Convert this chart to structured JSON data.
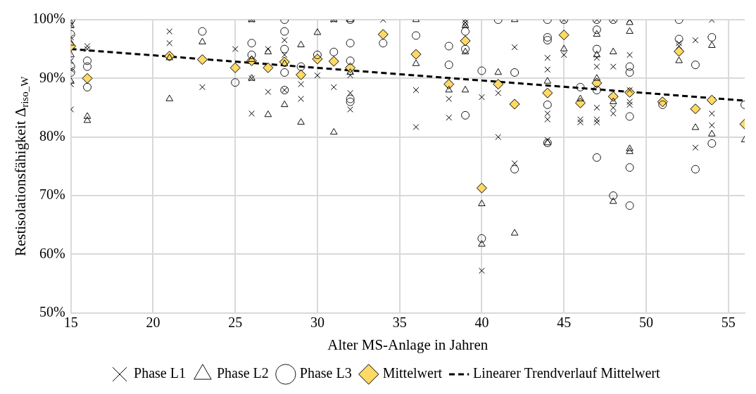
{
  "chart_data": {
    "type": "scatter",
    "xlabel": "Alter MS-Anlage in Jahren",
    "ylabel": "Restisolationsfähigkeit Δ$_{riso_W}$",
    "xlim": [
      15,
      56
    ],
    "xticks": [
      15,
      20,
      25,
      30,
      35,
      40,
      45,
      50,
      55
    ],
    "ylim": [
      50,
      100
    ],
    "yticks": [
      {
        "value": 50,
        "label": "50%"
      },
      {
        "value": 60,
        "label": "60%"
      },
      {
        "value": 70,
        "label": "70%"
      },
      {
        "value": 80,
        "label": "80%"
      },
      {
        "value": 90,
        "label": "90%"
      },
      {
        "value": 100,
        "label": "100%"
      }
    ],
    "grid": true,
    "legend": "bottom",
    "series": [
      {
        "name": "Phase L1",
        "color": "#000000",
        "marker": "cross",
        "x": [
          15,
          15,
          15,
          15,
          15,
          15,
          15,
          16,
          16,
          21,
          21,
          23,
          25,
          26,
          26,
          26,
          27,
          27,
          28,
          28,
          28,
          29,
          29,
          30,
          31,
          31,
          32,
          32,
          32,
          34,
          36,
          36,
          38,
          38,
          39,
          39,
          39,
          40,
          40,
          41,
          41,
          42,
          42,
          44,
          44,
          44,
          44,
          44,
          45,
          45,
          46,
          46,
          47,
          47,
          47,
          47,
          47,
          47,
          48,
          48,
          48,
          48,
          49,
          49,
          49,
          49,
          49,
          52,
          52,
          53,
          53,
          54,
          54,
          54
        ],
        "values": [
          100,
          99,
          97,
          93,
          91.5,
          89,
          84.7,
          95.5,
          95,
          98,
          96,
          88.5,
          95,
          100,
          90,
          84,
          95,
          87.7,
          96.5,
          94,
          88,
          89,
          86.5,
          90.5,
          100,
          88.5,
          90.5,
          87.5,
          84.7,
          100,
          88,
          81.7,
          86.5,
          83.3,
          100,
          99.5,
          99,
          86.8,
          57.2,
          87.5,
          80,
          95.3,
          75.5,
          93.5,
          91.5,
          84,
          83,
          79.5,
          100,
          94,
          83,
          82.5,
          100,
          93.5,
          92,
          85,
          83,
          82.5,
          100,
          92,
          85,
          84,
          100,
          94,
          88,
          86,
          85.5,
          96,
          95.5,
          96.5,
          78.2,
          100,
          84,
          82
        ]
      },
      {
        "name": "Phase L2",
        "color": "#0d0d0d",
        "marker": "triangle",
        "x": [
          15,
          15,
          15,
          15,
          16,
          16,
          21,
          21,
          23,
          26,
          26,
          26,
          27,
          27,
          28,
          28,
          29,
          29,
          30,
          31,
          31,
          32,
          32,
          36,
          36,
          38,
          39,
          39,
          39,
          40,
          40,
          41,
          42,
          42,
          44,
          44,
          45,
          46,
          47,
          47,
          47,
          48,
          48,
          48,
          49,
          49,
          49,
          49,
          52,
          53,
          54,
          54,
          56
        ],
        "values": [
          99,
          96,
          94,
          89.5,
          83.5,
          82.8,
          93.5,
          86.5,
          96.2,
          100,
          93.2,
          90,
          94.5,
          83.8,
          92.5,
          85.5,
          95.7,
          82.5,
          97.8,
          100,
          80.8,
          100,
          91,
          100,
          92.5,
          88,
          99,
          94.5,
          88,
          68.6,
          61.7,
          91,
          100,
          63.6,
          89.5,
          79,
          95,
          86.5,
          97.5,
          94,
          90,
          94.5,
          86,
          69,
          99.5,
          98,
          78,
          77.5,
          93,
          81.6,
          95.6,
          80.5,
          79.5
        ]
      },
      {
        "name": "Phase L3",
        "color": "#1a1a1a",
        "marker": "circle",
        "x": [
          15,
          15,
          15,
          15,
          16,
          16,
          16,
          23,
          25,
          26,
          26,
          28,
          28,
          28,
          28,
          28,
          29,
          30,
          31,
          32,
          32,
          32,
          32,
          32,
          34,
          36,
          38,
          38,
          39,
          39,
          39,
          40,
          40,
          41,
          42,
          42,
          44,
          44,
          44,
          44,
          44,
          45,
          46,
          47,
          47,
          47,
          47,
          47,
          48,
          48,
          49,
          49,
          49,
          49,
          49,
          51,
          52,
          52,
          53,
          53,
          54,
          54,
          56
        ],
        "values": [
          100,
          97.5,
          92,
          91,
          93,
          92,
          88.5,
          98,
          89.3,
          96,
          94,
          100,
          98,
          95,
          91,
          88,
          92,
          94,
          94.5,
          100,
          96,
          93,
          86.5,
          86,
          96,
          97.3,
          95.5,
          92.3,
          98,
          95,
          83.7,
          91.3,
          62.7,
          100,
          91,
          74.5,
          100,
          97,
          96.5,
          85.5,
          79,
          100,
          88.5,
          100,
          98.3,
          95,
          88,
          76.5,
          100,
          70,
          92,
          91,
          83.5,
          74.8,
          68.3,
          85.5,
          100,
          96.7,
          92.3,
          74.5,
          97,
          78.9,
          85.5
        ]
      },
      {
        "name": "Mittelwert",
        "color": "#ffd966",
        "marker": "diamond",
        "x": [
          15,
          16,
          21,
          23,
          25,
          26,
          27,
          28,
          29,
          30,
          31,
          32,
          34,
          36,
          38,
          39,
          40,
          41,
          42,
          44,
          45,
          46,
          47,
          48,
          49,
          51,
          52,
          53,
          54,
          56
        ],
        "values": [
          95.5,
          90,
          93.8,
          93.2,
          91.8,
          93,
          91.8,
          92.8,
          90.6,
          93.3,
          92.9,
          91.8,
          97.5,
          94.1,
          89,
          96.4,
          71.3,
          89,
          85.6,
          87.5,
          97.4,
          85.8,
          89.2,
          86.9,
          87.6,
          86,
          94.6,
          84.8,
          86.3,
          82.2
        ]
      },
      {
        "name": "Linearer Trendverlauf Mittelwert",
        "type": "line",
        "color": "#000000",
        "marker": "none",
        "line_style": "dashed",
        "x": [
          15,
          56
        ],
        "values": [
          95,
          86.2
        ]
      }
    ]
  }
}
